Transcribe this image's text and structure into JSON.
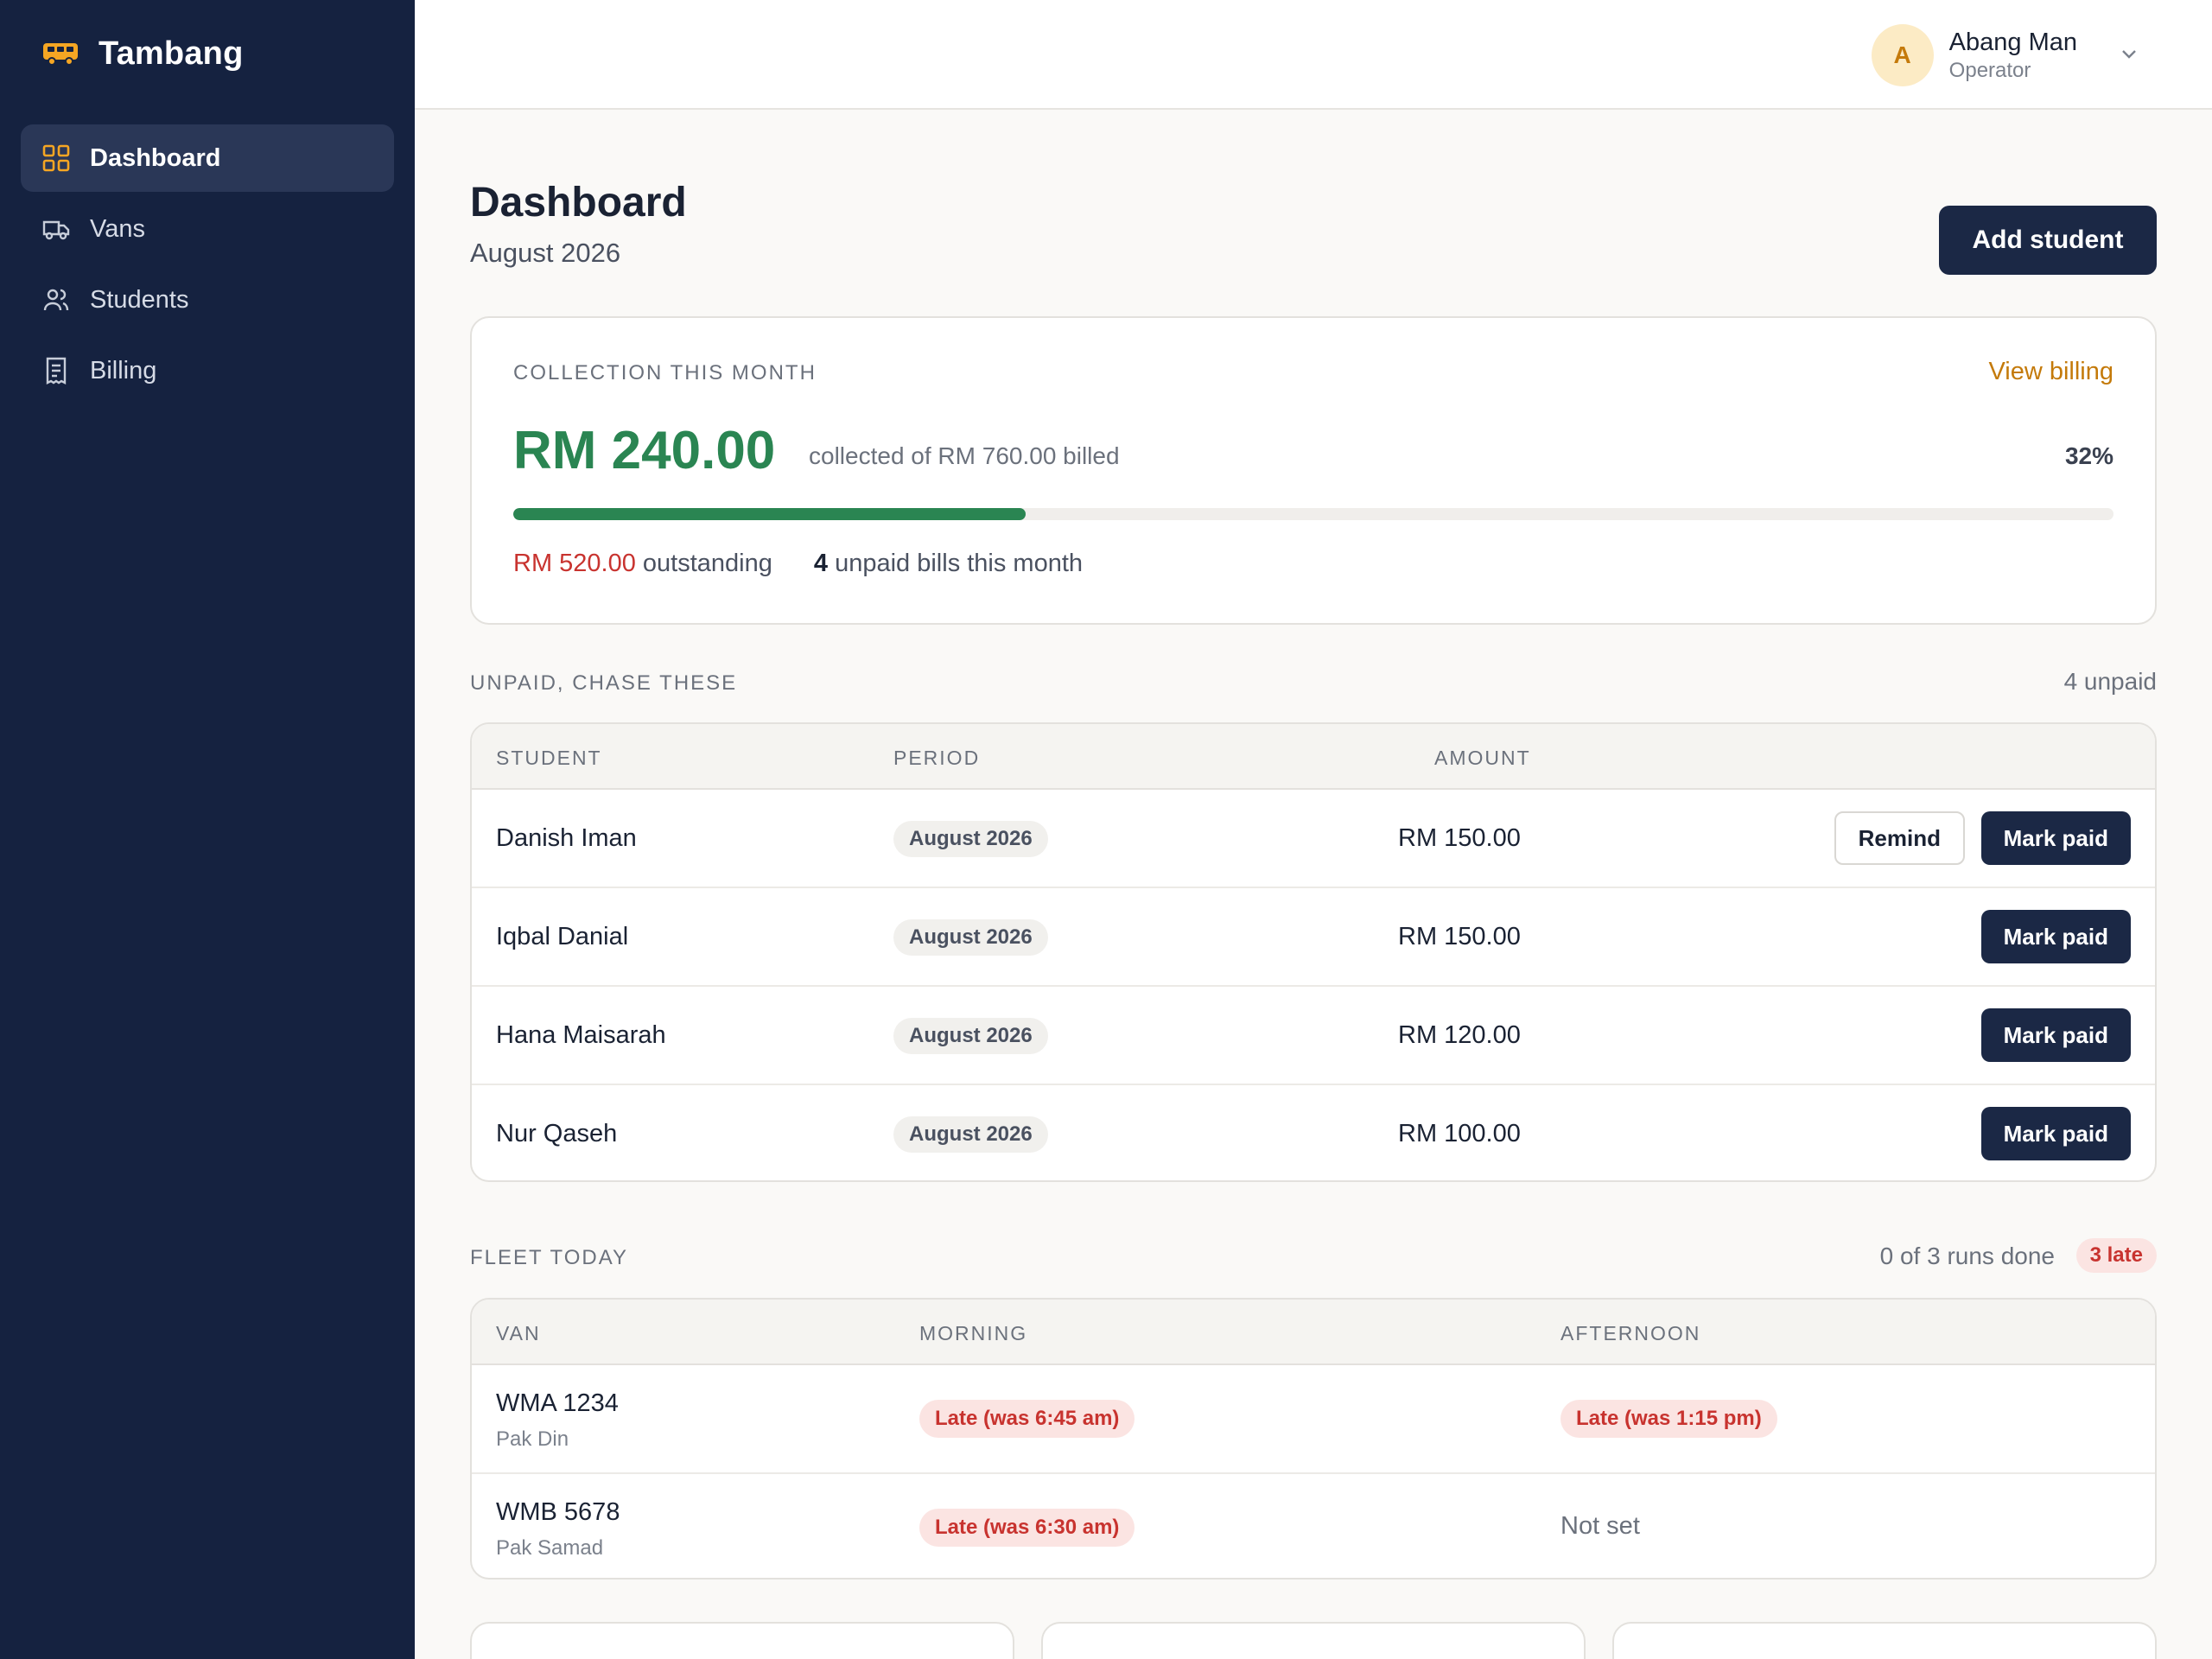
{
  "app": {
    "name": "Tambang",
    "accent": "#f5a623",
    "sidebar_bg": "#152240"
  },
  "sidebar": {
    "items": [
      {
        "label": "Dashboard",
        "icon": "grid-icon",
        "active": true
      },
      {
        "label": "Vans",
        "icon": "van-icon",
        "active": false
      },
      {
        "label": "Students",
        "icon": "users-icon",
        "active": false
      },
      {
        "label": "Billing",
        "icon": "receipt-icon",
        "active": false
      }
    ]
  },
  "user": {
    "initial": "A",
    "name": "Abang Man",
    "role": "Operator"
  },
  "page": {
    "title": "Dashboard",
    "subtitle": "August 2026",
    "add_button": "Add student"
  },
  "collection": {
    "label": "Collection this month",
    "view_link": "View billing",
    "amount": "RM 240.00",
    "caption": "collected of RM 760.00 billed",
    "percent_label": "32%",
    "progress": 0.32,
    "outstanding_value": "RM 520.00",
    "outstanding_text": "outstanding",
    "unpaid_count": "4",
    "unpaid_text": "unpaid bills this month"
  },
  "unpaid": {
    "label": "Unpaid, chase these",
    "count_text": "4 unpaid",
    "columns": [
      "Student",
      "Period",
      "Amount"
    ],
    "rows": [
      {
        "student": "Danish Iman",
        "period": "August 2026",
        "amount": "RM 150.00",
        "remind": "Remind",
        "action": "Mark paid"
      },
      {
        "student": "Iqbal Danial",
        "period": "August 2026",
        "amount": "RM 150.00",
        "action": "Mark paid"
      },
      {
        "student": "Hana Maisarah",
        "period": "August 2026",
        "amount": "RM 120.00",
        "action": "Mark paid"
      },
      {
        "student": "Nur Qaseh",
        "period": "August 2026",
        "amount": "RM 100.00",
        "action": "Mark paid"
      }
    ]
  },
  "fleet": {
    "label": "Fleet today",
    "runs_text": "0 of 3 runs done",
    "late_badge": "3 late",
    "columns": [
      "Van",
      "Morning",
      "Afternoon"
    ],
    "rows": [
      {
        "van": "WMA 1234",
        "driver": "Pak Din",
        "morning": "Late (was 6:45 am)",
        "afternoon": "Late (was 1:15 pm)"
      },
      {
        "van": "WMB 5678",
        "driver": "Pak Samad",
        "morning": "Late (was 6:30 am)",
        "afternoon": "Not set"
      }
    ]
  }
}
